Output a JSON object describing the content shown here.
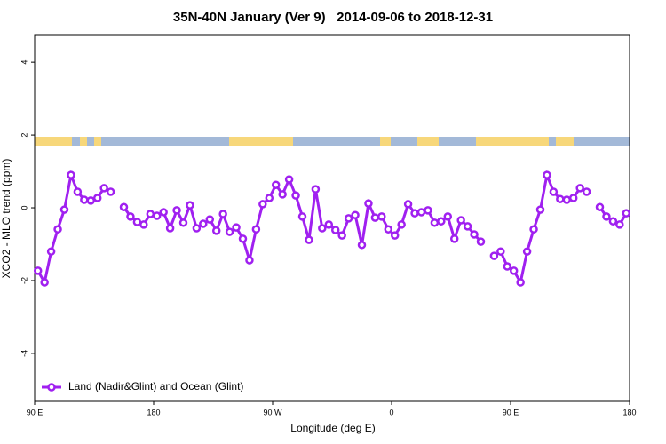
{
  "chart_data": {
    "type": "line",
    "title": "35N-40N January (Ver 9)   2014-09-06 to 2018-12-31",
    "xlabel": "Longitude (deg E)",
    "ylabel": "XCO2 - MLO trend (ppm)",
    "xlim": [
      90,
      540
    ],
    "ylim": [
      -5.32,
      4.76
    ],
    "xticks": [
      {
        "value": 90,
        "label": "90 E"
      },
      180,
      {
        "value": 270,
        "label": "90 W"
      },
      {
        "value": 360,
        "label": "0"
      },
      {
        "value": 450,
        "label": "90 E"
      },
      {
        "value": 540,
        "label": "180"
      }
    ],
    "yticks": [
      -4,
      -2,
      0,
      2,
      4
    ],
    "grid": false,
    "legend": "bottomleft",
    "x": [
      92.5,
      97.5,
      102.5,
      107.5,
      112.5,
      117.5,
      122.5,
      127.5,
      132.5,
      137.5,
      142.5,
      147.5,
      152.5,
      157.5,
      162.5,
      167.5,
      172.5,
      177.5,
      182.5,
      187.5,
      192.5,
      197.5,
      202.5,
      207.5,
      212.5,
      217.5,
      222.5,
      227.5,
      232.5,
      237.5,
      242.5,
      247.5,
      252.5,
      257.5,
      262.5,
      267.5,
      272.5,
      277.5,
      282.5,
      287.5,
      292.5,
      297.5,
      302.5,
      307.5,
      312.5,
      317.5,
      322.5,
      327.5,
      332.5,
      337.5,
      342.5,
      347.5,
      352.5,
      357.5,
      362.5,
      367.5,
      372.5,
      377.5,
      382.5,
      387.5,
      392.5,
      397.5,
      402.5,
      407.5,
      412.5,
      417.5,
      422.5,
      427.5,
      432.5,
      437.5,
      442.5,
      447.5,
      452.5,
      457.5,
      462.5,
      467.5,
      472.5,
      477.5,
      482.5,
      487.5,
      492.5,
      497.5,
      502.5,
      507.5,
      512.5,
      517.5,
      522.5,
      527.5,
      532.5,
      537.5
    ],
    "series": [
      {
        "name": "Land (Nadir&Glint) and Ocean (Glint)",
        "color": "#a020f0",
        "values": [
          -1.73,
          -2.05,
          -1.2,
          -0.59,
          -0.05,
          0.9,
          0.44,
          0.22,
          0.2,
          0.27,
          0.54,
          0.44,
          null,
          0.02,
          -0.24,
          -0.39,
          -0.46,
          -0.17,
          -0.22,
          -0.12,
          -0.56,
          -0.07,
          -0.41,
          0.07,
          -0.56,
          -0.44,
          -0.32,
          -0.63,
          -0.17,
          -0.66,
          -0.54,
          -0.85,
          -1.44,
          -0.59,
          0.1,
          0.27,
          0.63,
          0.37,
          0.78,
          0.34,
          -0.24,
          -0.88,
          0.51,
          -0.56,
          -0.46,
          -0.61,
          -0.76,
          -0.29,
          -0.2,
          -1.02,
          0.12,
          -0.27,
          -0.24,
          -0.59,
          -0.76,
          -0.46,
          0.1,
          -0.15,
          -0.12,
          -0.07,
          -0.41,
          -0.37,
          -0.24,
          -0.85,
          -0.34,
          -0.51,
          -0.73,
          -0.93,
          null,
          -1.32,
          -1.2,
          -1.61,
          -1.73,
          -2.05,
          -1.2,
          -0.59,
          -0.05,
          0.9,
          0.44,
          0.24,
          0.22,
          0.27,
          0.54,
          0.44,
          null,
          0.02,
          -0.24,
          -0.37,
          -0.46,
          -0.15
        ]
      }
    ]
  }
}
